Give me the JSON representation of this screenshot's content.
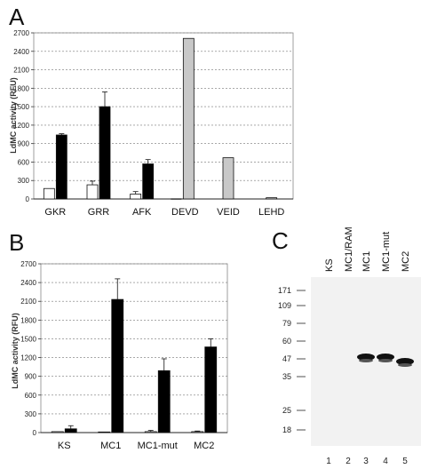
{
  "panel_labels": {
    "a": "A",
    "b": "B",
    "c": "C"
  },
  "colors": {
    "white_bar": "#ffffff",
    "black_bar": "#000000",
    "gray_bar": "#c8c8c8"
  },
  "chart_data": [
    {
      "type": "bar",
      "panel": "A",
      "ylabel": "LdMC activity (RFU)",
      "xlabel": "",
      "ylim": [
        0,
        2700
      ],
      "yticks": [
        0,
        300,
        600,
        900,
        1200,
        1500,
        1800,
        2100,
        2400,
        2700
      ],
      "grid": true,
      "categories": [
        "GKR",
        "GRR",
        "AFK",
        "DEVD",
        "VEID",
        "LEHD"
      ],
      "series": [
        {
          "color": "white",
          "values": [
            170,
            230,
            80,
            null,
            null,
            null
          ],
          "errors": [
            0,
            60,
            40,
            0,
            0,
            0
          ]
        },
        {
          "color": "black",
          "values": [
            1040,
            1500,
            570,
            null,
            null,
            null
          ],
          "errors": [
            20,
            240,
            70,
            0,
            0,
            0
          ]
        },
        {
          "color": "gray",
          "values": [
            null,
            null,
            null,
            2610,
            670,
            20
          ],
          "errors": [
            0,
            0,
            0,
            0,
            0,
            0
          ]
        }
      ],
      "extra_marks": [
        {
          "category": "DEVD",
          "color": "black",
          "value": 8
        }
      ]
    },
    {
      "type": "bar",
      "panel": "B",
      "ylabel": "LdMC activity (RFU)",
      "xlabel": "",
      "ylim": [
        0,
        2700
      ],
      "yticks": [
        0,
        300,
        600,
        900,
        1200,
        1500,
        1800,
        2100,
        2400,
        2700
      ],
      "grid": true,
      "categories": [
        "KS",
        "MC1",
        "MC1-mut",
        "MC2"
      ],
      "series": [
        {
          "color": "white",
          "values": [
            15,
            10,
            15,
            15
          ],
          "errors": [
            0,
            0,
            20,
            10
          ]
        },
        {
          "color": "black",
          "values": [
            60,
            2130,
            990,
            1370
          ],
          "errors": [
            50,
            330,
            190,
            130
          ]
        }
      ]
    }
  ],
  "blot": {
    "lanes": [
      "KS",
      "MC1/RAM",
      "MC1",
      "MC1-mut",
      "MC2"
    ],
    "lane_numbers": [
      "1",
      "2",
      "3",
      "4",
      "5"
    ],
    "markers": [
      "171",
      "109",
      "79",
      "60",
      "47",
      "35",
      "25",
      "18"
    ],
    "band_marker": "47",
    "bands_in_lanes": [
      3,
      4,
      5
    ]
  }
}
